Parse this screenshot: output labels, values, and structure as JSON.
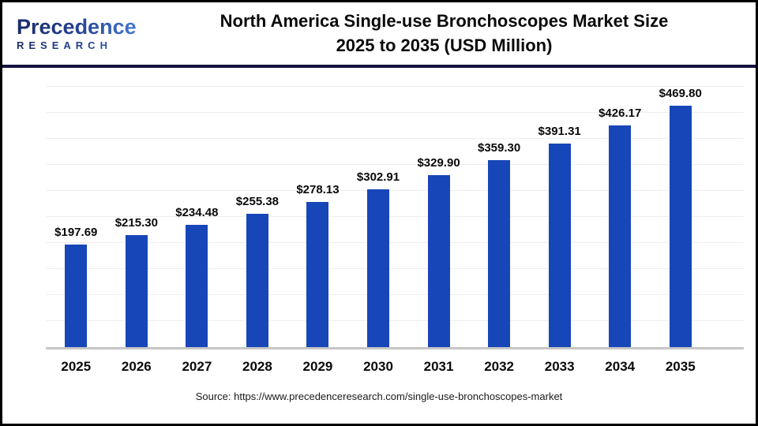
{
  "header": {
    "logo_line1": "Precedence",
    "logo_line2": "RESEARCH",
    "title_line1": "North America Single-use Bronchoscopes Market Size",
    "title_line2": "2025 to 2035 (USD Million)"
  },
  "chart_data": {
    "type": "bar",
    "title": "North America Single-use Bronchoscopes Market Size 2025 to 2035 (USD Million)",
    "categories": [
      "2025",
      "2026",
      "2027",
      "2028",
      "2029",
      "2030",
      "2031",
      "2032",
      "2033",
      "2034",
      "2035"
    ],
    "values": [
      197.69,
      215.3,
      234.48,
      255.38,
      278.13,
      302.91,
      329.9,
      359.3,
      391.31,
      426.17,
      469.8
    ],
    "value_labels": [
      "$197.69",
      "$215.30",
      "$234.48",
      "$255.38",
      "$278.13",
      "$302.91",
      "$329.90",
      "$359.30",
      "$391.31",
      "$426.17",
      "$469.80"
    ],
    "xlabel": "",
    "ylabel": "",
    "ylim": [
      0,
      500
    ],
    "gridline_step": 50,
    "grid": "horizontal",
    "legend": "none",
    "bar_color": "#1746b8"
  },
  "colors": {
    "bar": "#1746b8",
    "header_rule": "#141442",
    "gridline": "#efefef",
    "axis_line": "#c6c6c6",
    "frame_border": "#000000",
    "logo_gradient_start": "#1b2c6b",
    "logo_gradient_end": "#4a82db"
  },
  "footer": {
    "source": "Source: https://www.precedenceresearch.com/single-use-bronchoscopes-market"
  }
}
